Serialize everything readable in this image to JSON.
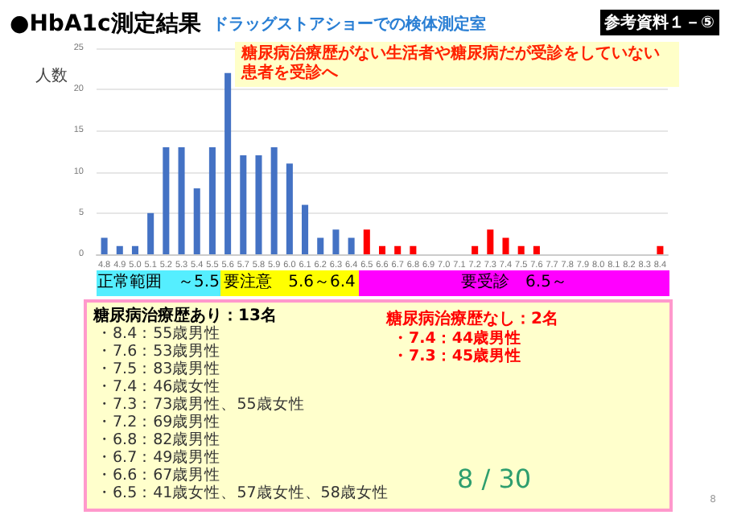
{
  "chart_data": {
    "type": "bar",
    "title": "●HbA1c測定結果",
    "subtitle": "ドラッグストアショーでの検体測定室",
    "ylabel": "人数",
    "categories": [
      "4.8",
      "4.9",
      "5.0",
      "5.1",
      "5.2",
      "5.3",
      "5.4",
      "5.5",
      "5.6",
      "5.7",
      "5.8",
      "5.9",
      "6.0",
      "6.1",
      "6.2",
      "6.3",
      "6.4",
      "6.5",
      "6.6",
      "6.7",
      "6.8",
      "6.9",
      "7.0",
      "7.1",
      "7.2",
      "7.3",
      "7.4",
      "7.5",
      "7.6",
      "7.7",
      "7.8",
      "7.9",
      "8.0",
      "8.1",
      "8.2",
      "8.3",
      "8.4"
    ],
    "values": [
      2,
      1,
      1,
      5,
      13,
      13,
      8,
      13,
      22,
      12,
      12,
      13,
      11,
      6,
      2,
      3,
      2,
      3,
      1,
      1,
      1,
      0,
      0,
      0,
      1,
      3,
      2,
      1,
      1,
      0,
      0,
      0,
      0,
      0,
      0,
      0,
      1
    ],
    "colors": [
      "#4472c4",
      "#4472c4",
      "#4472c4",
      "#4472c4",
      "#4472c4",
      "#4472c4",
      "#4472c4",
      "#4472c4",
      "#4472c4",
      "#4472c4",
      "#4472c4",
      "#4472c4",
      "#4472c4",
      "#4472c4",
      "#4472c4",
      "#4472c4",
      "#4472c4",
      "#ff0000",
      "#ff0000",
      "#ff0000",
      "#ff0000",
      "#ff0000",
      "#ff0000",
      "#ff0000",
      "#ff0000",
      "#ff0000",
      "#ff0000",
      "#ff0000",
      "#ff0000",
      "#ff0000",
      "#ff0000",
      "#ff0000",
      "#ff0000",
      "#ff0000",
      "#ff0000",
      "#ff0000",
      "#ff0000"
    ],
    "ylim": [
      0,
      25
    ],
    "yticks": [
      0,
      5,
      10,
      15,
      20,
      25
    ],
    "grid": "y",
    "annotations": [
      "正常範囲　～5.5",
      "要注意　5.6～6.4",
      "要受診　6.5～",
      "参考資料１－⑤",
      "糖尿病治療歴がない生活者や糖尿病だが受診をしていない患者を受診へ",
      "糖尿病治療歴あり：13名",
      "・8.4：55歳男性",
      "・7.6：53歳男性",
      "・7.5：83歳男性",
      "・7.4：46歳女性",
      "・7.3：73歳男性、55歳女性",
      "・7.2：69歳男性",
      "・6.8：82歳男性",
      "・6.7：49歳男性",
      "・6.6：67歳男性",
      "・6.5：41歳女性、57歳女性、58歳女性",
      "糖尿病治療歴なし：2名",
      "・7.4：44歳男性",
      "・7.3：45歳男性",
      "8 / 30",
      "8"
    ]
  }
}
